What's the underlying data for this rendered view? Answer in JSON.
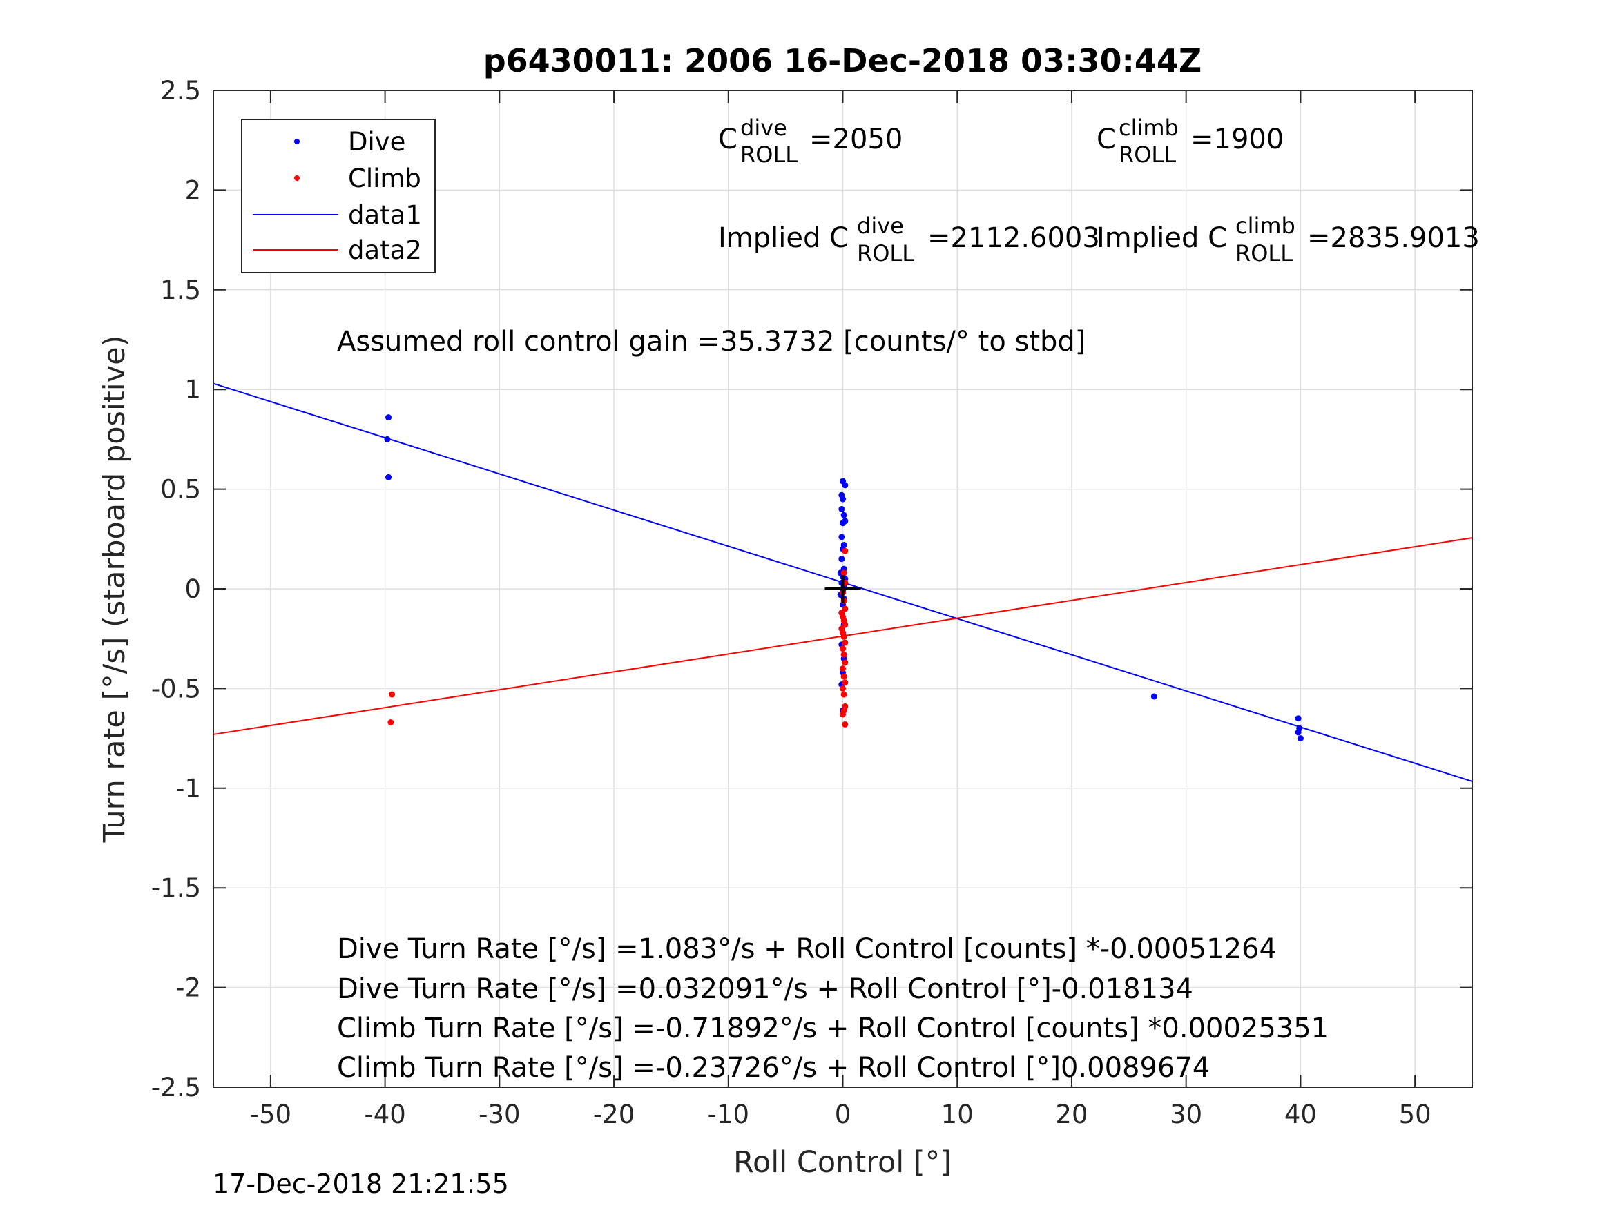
{
  "chart_data": {
    "type": "scatter",
    "title": "p6430011:  2006 16-Dec-2018 03:30:44Z",
    "xlabel": "Roll Control [°]",
    "ylabel": "Turn rate [°/s] (starboard positive)",
    "xlim": [
      -55,
      55
    ],
    "ylim": [
      -2.5,
      2.5
    ],
    "xticks": [
      -50,
      -40,
      -30,
      -20,
      -10,
      0,
      10,
      20,
      30,
      40,
      50
    ],
    "yticks": [
      2.5,
      2,
      1.5,
      1,
      0.5,
      0,
      -0.5,
      -1,
      -1.5,
      -2,
      -2.5
    ],
    "xtick_labels": [
      "-50",
      "-40",
      "-30",
      "-20",
      "-10",
      "0",
      "10",
      "20",
      "30",
      "40",
      "50"
    ],
    "ytick_labels": [
      "2.5",
      "2",
      "1.5",
      "1",
      "0.5",
      "0",
      "-0.5",
      "-1",
      "-1.5",
      "-2",
      "-2.5"
    ],
    "grid": true,
    "legend_position": "top-left",
    "legend": [
      {
        "label": "Dive",
        "kind": "marker",
        "color": "#0000ff"
      },
      {
        "label": "Climb",
        "kind": "marker",
        "color": "#ff0000"
      },
      {
        "label": "data1",
        "kind": "line",
        "color": "#0000ff"
      },
      {
        "label": "data2",
        "kind": "line",
        "color": "#ff0000"
      }
    ],
    "series": [
      {
        "name": "Dive",
        "kind": "scatter",
        "color": "#0000ff",
        "points": [
          [
            -39.7,
            0.86
          ],
          [
            -39.8,
            0.75
          ],
          [
            -39.7,
            0.56
          ],
          [
            0.0,
            0.54
          ],
          [
            0.2,
            0.52
          ],
          [
            -0.1,
            0.47
          ],
          [
            0.0,
            0.45
          ],
          [
            -0.1,
            0.4
          ],
          [
            0.1,
            0.37
          ],
          [
            0.2,
            0.34
          ],
          [
            0.0,
            0.33
          ],
          [
            -0.1,
            0.26
          ],
          [
            0.1,
            0.22
          ],
          [
            0.0,
            0.2
          ],
          [
            -0.1,
            0.15
          ],
          [
            0.1,
            0.1
          ],
          [
            -0.2,
            0.08
          ],
          [
            0.0,
            0.06
          ],
          [
            0.2,
            0.05
          ],
          [
            -0.1,
            0.03
          ],
          [
            0.1,
            0.01
          ],
          [
            0.0,
            -0.01
          ],
          [
            -0.2,
            -0.03
          ],
          [
            0.1,
            -0.05
          ],
          [
            0.0,
            -0.08
          ],
          [
            -0.1,
            -0.12
          ],
          [
            0.1,
            -0.18
          ],
          [
            0.0,
            -0.22
          ],
          [
            -0.1,
            -0.28
          ],
          [
            0.1,
            -0.35
          ],
          [
            0.0,
            -0.42
          ],
          [
            -0.1,
            -0.48
          ],
          [
            0.0,
            -0.61
          ],
          [
            27.2,
            -0.54
          ],
          [
            39.8,
            -0.65
          ],
          [
            39.9,
            -0.7
          ],
          [
            39.8,
            -0.72
          ],
          [
            40.0,
            -0.75
          ]
        ]
      },
      {
        "name": "Climb",
        "kind": "scatter",
        "color": "#ff0000",
        "points": [
          [
            -39.4,
            -0.53
          ],
          [
            -39.5,
            -0.67
          ],
          [
            0.2,
            0.19
          ],
          [
            0.1,
            0.08
          ],
          [
            0.2,
            0.03
          ],
          [
            0.0,
            -0.02
          ],
          [
            0.1,
            -0.06
          ],
          [
            0.2,
            -0.1
          ],
          [
            -0.1,
            -0.12
          ],
          [
            0.0,
            -0.14
          ],
          [
            0.1,
            -0.16
          ],
          [
            0.2,
            -0.18
          ],
          [
            -0.1,
            -0.2
          ],
          [
            0.0,
            -0.22
          ],
          [
            0.1,
            -0.24
          ],
          [
            0.2,
            -0.27
          ],
          [
            0.0,
            -0.3
          ],
          [
            0.1,
            -0.33
          ],
          [
            0.2,
            -0.37
          ],
          [
            0.0,
            -0.4
          ],
          [
            0.1,
            -0.44
          ],
          [
            0.2,
            -0.47
          ],
          [
            0.0,
            -0.5
          ],
          [
            0.1,
            -0.53
          ],
          [
            0.2,
            -0.59
          ],
          [
            0.1,
            -0.61
          ],
          [
            0.0,
            -0.63
          ],
          [
            0.2,
            -0.68
          ]
        ]
      },
      {
        "name": "data1",
        "kind": "line",
        "color": "#0000ff",
        "points": [
          [
            -55,
            1.03
          ],
          [
            55,
            -0.966
          ]
        ]
      },
      {
        "name": "data2",
        "kind": "line",
        "color": "#ff0000",
        "points": [
          [
            -55,
            -0.7304
          ],
          [
            55,
            0.2559
          ]
        ]
      }
    ],
    "marker": {
      "x": 0,
      "y": 0,
      "symbol": "+",
      "color": "#000000"
    },
    "annotations": {
      "c_dive_base": "C",
      "c_dive_sup": "dive",
      "c_dive_sub": "ROLL",
      "c_dive_value": "=2050",
      "c_climb_base": "C",
      "c_climb_sup": "climb",
      "c_climb_sub": "ROLL",
      "c_climb_value": "=1900",
      "implied_dive_prefix": "Implied C",
      "implied_dive_sup": "dive",
      "implied_dive_sub": "ROLL",
      "implied_dive_value": "=2112.6003",
      "implied_climb_prefix": "Implied C",
      "implied_climb_sup": "climb",
      "implied_climb_sub": "ROLL",
      "implied_climb_value": "=2835.9013",
      "gain": "Assumed roll control gain =35.3732 [counts/° to stbd]",
      "eq1": "Dive Turn Rate [°/s] =1.083°/s + Roll Control [counts] *-0.00051264",
      "eq2": "Dive Turn Rate [°/s] =0.032091°/s + Roll Control [°]-0.018134",
      "eq3": "Climb Turn Rate [°/s] =-0.71892°/s + Roll Control [counts] *0.00025351",
      "eq4": "Climb Turn Rate [°/s] =-0.23726°/s + Roll Control [°]0.0089674"
    },
    "timestamp": "17-Dec-2018 21:21:55"
  }
}
